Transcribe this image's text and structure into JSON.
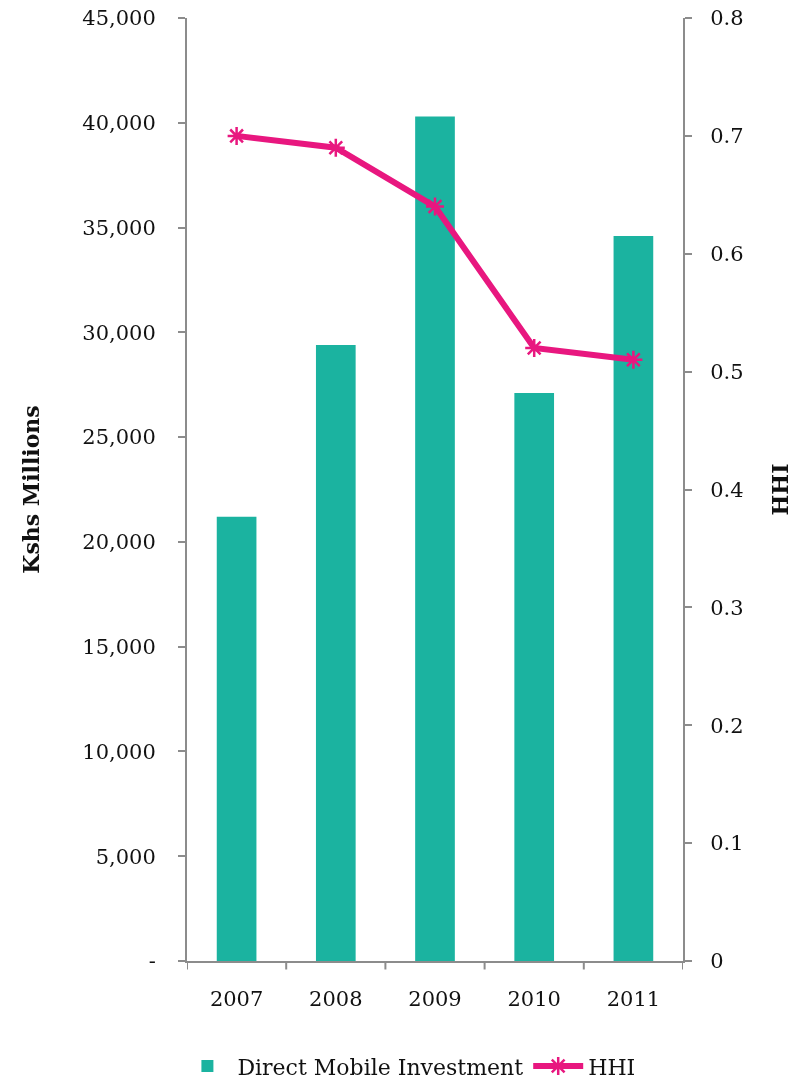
{
  "chart_data": {
    "type": "bar",
    "categories": [
      "2007",
      "2008",
      "2009",
      "2010",
      "2011"
    ],
    "series": [
      {
        "name": "Direct Mobile Investment",
        "color": "#1bb3a0",
        "values": [
          21200,
          29400,
          40300,
          27100,
          34600
        ]
      },
      {
        "name": "HHI",
        "type": "line",
        "axis": "y2",
        "color": "#e8177f",
        "marker": "cross",
        "values": [
          0.7,
          0.69,
          0.64,
          0.52,
          0.51
        ]
      }
    ],
    "ylabel": "Kshs Millions",
    "y2label": "HHI",
    "ylim": [
      0,
      45000
    ],
    "yticks": [
      {
        "value": 0,
        "label": "-"
      },
      {
        "value": 5000,
        "label": "5,000"
      },
      {
        "value": 10000,
        "label": "10,000"
      },
      {
        "value": 15000,
        "label": "15,000"
      },
      {
        "value": 20000,
        "label": "20,000"
      },
      {
        "value": 25000,
        "label": "25,000"
      },
      {
        "value": 30000,
        "label": "30,000"
      },
      {
        "value": 35000,
        "label": "35,000"
      },
      {
        "value": 40000,
        "label": "40,000"
      },
      {
        "value": 45000,
        "label": "45,000"
      }
    ],
    "y2lim": [
      0,
      0.8
    ],
    "y2ticks": [
      0,
      0.1,
      0.2,
      0.3,
      0.4,
      0.5,
      0.6,
      0.7,
      0.8
    ],
    "legend": "bottom"
  }
}
